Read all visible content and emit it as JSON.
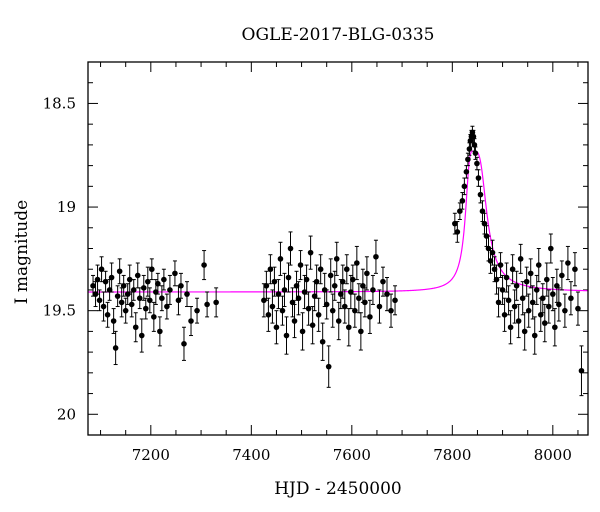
{
  "chart_data": {
    "type": "scatter",
    "title": "OGLE-2017-BLG-0335",
    "xlabel": "HJD - 2450000",
    "ylabel": "I magnitude",
    "xlim": [
      7075,
      8070
    ],
    "ylim": [
      20.1,
      18.3
    ],
    "y_inverted": true,
    "grid": false,
    "xticks": [
      {
        "value": 7200,
        "label": "7200"
      },
      {
        "value": 7400,
        "label": "7400"
      },
      {
        "value": 7600,
        "label": "7600"
      },
      {
        "value": 7800,
        "label": "7800"
      },
      {
        "value": 8000,
        "label": "8000"
      }
    ],
    "yticks": [
      {
        "value": 18.5,
        "label": "18.5"
      },
      {
        "value": 19.0,
        "label": "19"
      },
      {
        "value": 19.5,
        "label": "19.5"
      },
      {
        "value": 20.0,
        "label": "20"
      }
    ],
    "model": {
      "color": "#ff00ff",
      "baseline": 19.41,
      "peak_time": 7842,
      "peak_mag": 18.73,
      "rise_timescale": 13,
      "decay_timescale": 22
    },
    "series": [
      {
        "color": "#000000",
        "marker": "filled-circle-with-errorbars",
        "points": [
          [
            7085,
            19.38,
            0.05
          ],
          [
            7090,
            19.42,
            0.06
          ],
          [
            7094,
            19.35,
            0.07
          ],
          [
            7098,
            19.45,
            0.05
          ],
          [
            7102,
            19.3,
            0.06
          ],
          [
            7106,
            19.48,
            0.07
          ],
          [
            7110,
            19.36,
            0.05
          ],
          [
            7114,
            19.52,
            0.06
          ],
          [
            7118,
            19.4,
            0.05
          ],
          [
            7122,
            19.34,
            0.07
          ],
          [
            7126,
            19.55,
            0.06
          ],
          [
            7130,
            19.68,
            0.08
          ],
          [
            7134,
            19.43,
            0.05
          ],
          [
            7138,
            19.31,
            0.06
          ],
          [
            7142,
            19.46,
            0.07
          ],
          [
            7146,
            19.38,
            0.05
          ],
          [
            7150,
            19.5,
            0.06
          ],
          [
            7154,
            19.42,
            0.05
          ],
          [
            7158,
            19.35,
            0.07
          ],
          [
            7162,
            19.47,
            0.06
          ],
          [
            7166,
            19.4,
            0.05
          ],
          [
            7170,
            19.58,
            0.07
          ],
          [
            7174,
            19.33,
            0.06
          ],
          [
            7178,
            19.44,
            0.05
          ],
          [
            7182,
            19.62,
            0.08
          ],
          [
            7186,
            19.39,
            0.06
          ],
          [
            7190,
            19.49,
            0.05
          ],
          [
            7194,
            19.36,
            0.07
          ],
          [
            7198,
            19.45,
            0.06
          ],
          [
            7202,
            19.3,
            0.05
          ],
          [
            7206,
            19.53,
            0.07
          ],
          [
            7210,
            19.41,
            0.06
          ],
          [
            7214,
            19.37,
            0.05
          ],
          [
            7218,
            19.6,
            0.07
          ],
          [
            7222,
            19.44,
            0.06
          ],
          [
            7226,
            19.35,
            0.05
          ],
          [
            7232,
            19.48,
            0.06
          ],
          [
            7238,
            19.4,
            0.07
          ],
          [
            7248,
            19.32,
            0.06
          ],
          [
            7255,
            19.45,
            0.07
          ],
          [
            7260,
            19.38,
            0.06
          ],
          [
            7266,
            19.66,
            0.08
          ],
          [
            7272,
            19.42,
            0.06
          ],
          [
            7280,
            19.55,
            0.07
          ],
          [
            7292,
            19.5,
            0.06
          ],
          [
            7306,
            19.28,
            0.07
          ],
          [
            7312,
            19.47,
            0.06
          ],
          [
            7330,
            19.46,
            0.07
          ],
          [
            7425,
            19.45,
            0.08
          ],
          [
            7430,
            19.38,
            0.07
          ],
          [
            7434,
            19.52,
            0.08
          ],
          [
            7438,
            19.3,
            0.07
          ],
          [
            7442,
            19.48,
            0.08
          ],
          [
            7446,
            19.36,
            0.07
          ],
          [
            7450,
            19.58,
            0.08
          ],
          [
            7454,
            19.42,
            0.07
          ],
          [
            7458,
            19.25,
            0.08
          ],
          [
            7462,
            19.5,
            0.07
          ],
          [
            7466,
            19.4,
            0.08
          ],
          [
            7470,
            19.62,
            0.09
          ],
          [
            7474,
            19.34,
            0.07
          ],
          [
            7478,
            19.2,
            0.08
          ],
          [
            7482,
            19.46,
            0.07
          ],
          [
            7486,
            19.55,
            0.08
          ],
          [
            7490,
            19.38,
            0.07
          ],
          [
            7494,
            19.44,
            0.08
          ],
          [
            7498,
            19.28,
            0.07
          ],
          [
            7502,
            19.6,
            0.09
          ],
          [
            7506,
            19.41,
            0.08
          ],
          [
            7510,
            19.35,
            0.07
          ],
          [
            7514,
            19.49,
            0.08
          ],
          [
            7518,
            19.22,
            0.08
          ],
          [
            7522,
            19.57,
            0.09
          ],
          [
            7526,
            19.43,
            0.07
          ],
          [
            7530,
            19.36,
            0.08
          ],
          [
            7534,
            19.52,
            0.08
          ],
          [
            7538,
            19.3,
            0.07
          ],
          [
            7542,
            19.65,
            0.09
          ],
          [
            7546,
            19.4,
            0.08
          ],
          [
            7550,
            19.47,
            0.07
          ],
          [
            7554,
            19.77,
            0.1
          ],
          [
            7558,
            19.33,
            0.08
          ],
          [
            7562,
            19.5,
            0.08
          ],
          [
            7566,
            19.38,
            0.07
          ],
          [
            7570,
            19.25,
            0.08
          ],
          [
            7574,
            19.55,
            0.09
          ],
          [
            7578,
            19.42,
            0.07
          ],
          [
            7582,
            19.36,
            0.08
          ],
          [
            7586,
            19.48,
            0.08
          ],
          [
            7590,
            19.3,
            0.07
          ],
          [
            7594,
            19.58,
            0.09
          ],
          [
            7598,
            19.41,
            0.08
          ],
          [
            7602,
            19.35,
            0.07
          ],
          [
            7606,
            19.5,
            0.08
          ],
          [
            7610,
            19.27,
            0.08
          ],
          [
            7614,
            19.44,
            0.07
          ],
          [
            7618,
            19.6,
            0.09
          ],
          [
            7622,
            19.38,
            0.08
          ],
          [
            7626,
            19.46,
            0.07
          ],
          [
            7630,
            19.32,
            0.08
          ],
          [
            7636,
            19.53,
            0.08
          ],
          [
            7642,
            19.4,
            0.07
          ],
          [
            7648,
            19.24,
            0.08
          ],
          [
            7655,
            19.48,
            0.08
          ],
          [
            7662,
            19.36,
            0.07
          ],
          [
            7670,
            19.42,
            0.08
          ],
          [
            7678,
            19.5,
            0.08
          ],
          [
            7686,
            19.45,
            0.07
          ],
          [
            7805,
            19.08,
            0.05
          ],
          [
            7810,
            19.12,
            0.05
          ],
          [
            7815,
            19.02,
            0.04
          ],
          [
            7820,
            18.97,
            0.04
          ],
          [
            7824,
            18.9,
            0.04
          ],
          [
            7828,
            18.83,
            0.03
          ],
          [
            7831,
            18.77,
            0.03
          ],
          [
            7834,
            18.72,
            0.03
          ],
          [
            7836,
            18.68,
            0.03
          ],
          [
            7838,
            18.66,
            0.03
          ],
          [
            7840,
            18.64,
            0.03
          ],
          [
            7842,
            18.66,
            0.03
          ],
          [
            7844,
            18.7,
            0.03
          ],
          [
            7846,
            18.74,
            0.03
          ],
          [
            7849,
            18.79,
            0.03
          ],
          [
            7852,
            18.86,
            0.04
          ],
          [
            7856,
            18.94,
            0.04
          ],
          [
            7860,
            19.02,
            0.05
          ],
          [
            7864,
            19.08,
            0.05
          ],
          [
            7868,
            19.14,
            0.05
          ],
          [
            7872,
            19.2,
            0.06
          ],
          [
            7876,
            19.26,
            0.06
          ],
          [
            7880,
            19.22,
            0.06
          ],
          [
            7884,
            19.3,
            0.06
          ],
          [
            7888,
            19.35,
            0.07
          ],
          [
            7892,
            19.46,
            0.07
          ],
          [
            7896,
            19.28,
            0.06
          ],
          [
            7900,
            19.4,
            0.07
          ],
          [
            7904,
            19.52,
            0.08
          ],
          [
            7908,
            19.34,
            0.07
          ],
          [
            7912,
            19.45,
            0.07
          ],
          [
            7916,
            19.58,
            0.08
          ],
          [
            7920,
            19.3,
            0.07
          ],
          [
            7924,
            19.48,
            0.08
          ],
          [
            7928,
            19.38,
            0.07
          ],
          [
            7932,
            19.55,
            0.08
          ],
          [
            7936,
            19.25,
            0.07
          ],
          [
            7940,
            19.44,
            0.08
          ],
          [
            7944,
            19.6,
            0.09
          ],
          [
            7948,
            19.36,
            0.07
          ],
          [
            7952,
            19.5,
            0.08
          ],
          [
            7956,
            19.32,
            0.07
          ],
          [
            7960,
            19.46,
            0.08
          ],
          [
            7964,
            19.62,
            0.09
          ],
          [
            7968,
            19.4,
            0.07
          ],
          [
            7972,
            19.28,
            0.08
          ],
          [
            7976,
            19.52,
            0.08
          ],
          [
            7980,
            19.44,
            0.07
          ],
          [
            7984,
            19.56,
            0.09
          ],
          [
            7988,
            19.35,
            0.08
          ],
          [
            7992,
            19.48,
            0.08
          ],
          [
            7996,
            19.2,
            0.07
          ],
          [
            8000,
            19.42,
            0.08
          ],
          [
            8004,
            19.58,
            0.09
          ],
          [
            8008,
            19.38,
            0.08
          ],
          [
            8012,
            19.47,
            0.08
          ],
          [
            8018,
            19.33,
            0.07
          ],
          [
            8024,
            19.5,
            0.08
          ],
          [
            8030,
            19.27,
            0.08
          ],
          [
            8036,
            19.44,
            0.08
          ],
          [
            8044,
            19.3,
            0.08
          ],
          [
            8050,
            19.49,
            0.08
          ],
          [
            8057,
            19.79,
            0.12
          ]
        ]
      }
    ]
  }
}
